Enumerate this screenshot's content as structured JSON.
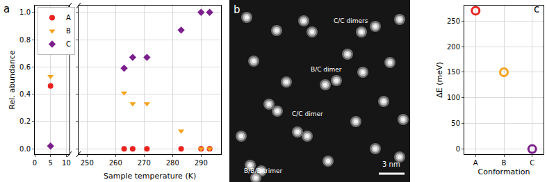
{
  "chart_data": [
    {
      "type": "scatter",
      "title": "a",
      "xlabel": "Sample temperature (K)",
      "ylabel": "Rel. abundance",
      "xlim": [
        [
          0,
          11
        ],
        [
          247,
          297
        ]
      ],
      "xticks": [
        [
          0,
          5,
          10
        ],
        [
          250,
          260,
          270,
          280,
          290
        ]
      ],
      "ylim": [
        -0.04,
        1.05
      ],
      "yticks": [
        {
          "value": 0,
          "label": "0.0"
        },
        0.2,
        0.4,
        0.6,
        0.8,
        {
          "value": 1,
          "label": "1.0"
        }
      ],
      "grid": true,
      "legend": "upper left",
      "series": [
        {
          "name": "A",
          "color": "#e8231f",
          "marker": "circle",
          "x": [
            5,
            263,
            266,
            271,
            283,
            290,
            293
          ],
          "values": [
            0.46,
            0,
            0,
            0,
            0,
            0,
            0
          ]
        },
        {
          "name": "B",
          "color": "#f5a21c",
          "marker": "triangle-down",
          "x": [
            5,
            263,
            266,
            271,
            283,
            290,
            293
          ],
          "values": [
            0.53,
            0.41,
            0.33,
            0.33,
            0.13,
            0,
            0
          ]
        },
        {
          "name": "C",
          "color": "#7b1f8c",
          "marker": "diamond",
          "x": [
            5,
            263,
            266,
            271,
            283,
            290,
            293
          ],
          "values": [
            0.02,
            0.59,
            0.67,
            0.67,
            0.87,
            1.0,
            1.0
          ]
        }
      ]
    },
    {
      "type": "image",
      "title": "b",
      "annotations": [
        "C/C dimers",
        "B/C dimer",
        "C/C dimer",
        "B/B/B trimer"
      ],
      "scale_bar": "3 nm"
    },
    {
      "type": "scatter",
      "title": "c",
      "xlabel": "Conformation",
      "ylabel": "ΔE (meV)",
      "categories": [
        "A",
        "B",
        "C"
      ],
      "values": [
        270,
        150,
        0
      ],
      "colors": [
        "#e8231f",
        "#f5a21c",
        "#7b1f8c"
      ],
      "marker": "circle-open",
      "ylim": [
        -10,
        280
      ],
      "yticks": [
        0,
        50,
        100,
        150,
        200,
        250
      ],
      "grid": true
    }
  ]
}
